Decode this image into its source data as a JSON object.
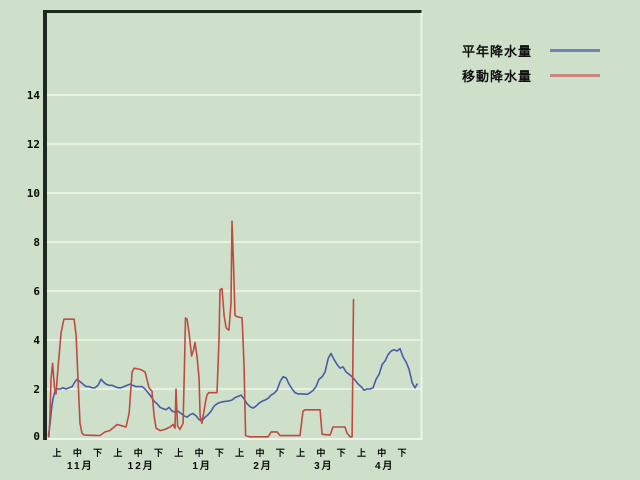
{
  "legend": {
    "items": [
      {
        "label": "平年降水量",
        "swatch_color": "#7282b2"
      },
      {
        "label": "移動降水量",
        "swatch_color": "#c6897b"
      }
    ]
  },
  "colors": {
    "background": "#cee0ca",
    "gridline": "#e7f0e3",
    "frame_dark": "#1e2a1e",
    "frame_light": "#edf5e9",
    "label_text": "#0a0a0a",
    "series_normal": "#4a5ca6",
    "series_moving": "#bf4a40"
  },
  "chart_data": {
    "type": "line",
    "title": "",
    "xlabel": "",
    "ylabel": "",
    "x_axis": {
      "unit": "ten-day periods (旬) from Nov 1, x in days",
      "jun_labels": [
        "上",
        "中",
        "下"
      ],
      "months": [
        "11月",
        "12月",
        "1月",
        "2月",
        "3月",
        "4月"
      ],
      "days_per_month": 30,
      "range_days": [
        0,
        184
      ]
    },
    "y_axis": {
      "ticks": [
        0,
        2,
        4,
        6,
        8,
        10,
        12,
        14
      ],
      "range": [
        0,
        17.4
      ],
      "grid": true
    },
    "legend_position": "top-right-outside",
    "series": [
      {
        "name": "平年降水量",
        "color": "#4a5ca6",
        "points": [
          [
            0.8,
            0.1
          ],
          [
            1.6,
            0.6
          ],
          [
            2.3,
            1.2
          ],
          [
            3,
            1.6
          ],
          [
            4,
            1.9
          ],
          [
            5,
            2.0
          ],
          [
            6.5,
            2.0
          ],
          [
            8,
            2.05
          ],
          [
            9.4,
            2.0
          ],
          [
            10.9,
            2.05
          ],
          [
            12.4,
            2.1
          ],
          [
            13.9,
            2.3
          ],
          [
            14.9,
            2.4
          ],
          [
            16.3,
            2.3
          ],
          [
            17.8,
            2.2
          ],
          [
            19.3,
            2.1
          ],
          [
            20.8,
            2.1
          ],
          [
            22.2,
            2.05
          ],
          [
            23.7,
            2.05
          ],
          [
            25.2,
            2.15
          ],
          [
            26.7,
            2.4
          ],
          [
            27.7,
            2.3
          ],
          [
            29.1,
            2.2
          ],
          [
            30.6,
            2.15
          ],
          [
            32.1,
            2.15
          ],
          [
            33.6,
            2.1
          ],
          [
            35.1,
            2.05
          ],
          [
            36.5,
            2.05
          ],
          [
            38,
            2.1
          ],
          [
            39.5,
            2.15
          ],
          [
            41,
            2.2
          ],
          [
            42.4,
            2.15
          ],
          [
            43.9,
            2.1
          ],
          [
            45.4,
            2.1
          ],
          [
            46.9,
            2.1
          ],
          [
            48.4,
            2.0
          ],
          [
            49.8,
            1.85
          ],
          [
            51.3,
            1.7
          ],
          [
            52.8,
            1.5
          ],
          [
            54.3,
            1.4
          ],
          [
            55.8,
            1.25
          ],
          [
            57.2,
            1.2
          ],
          [
            58.7,
            1.15
          ],
          [
            60.2,
            1.25
          ],
          [
            61.7,
            1.1
          ],
          [
            63.2,
            1.05
          ],
          [
            64.6,
            1.1
          ],
          [
            66.1,
            1.0
          ],
          [
            67.6,
            0.9
          ],
          [
            69.1,
            0.85
          ],
          [
            70.5,
            0.95
          ],
          [
            72,
            1.0
          ],
          [
            73.5,
            0.9
          ],
          [
            75,
            0.75
          ],
          [
            76.4,
            0.7
          ],
          [
            77.9,
            0.85
          ],
          [
            79.4,
            0.95
          ],
          [
            80.9,
            1.1
          ],
          [
            82.4,
            1.3
          ],
          [
            83.8,
            1.4
          ],
          [
            85.3,
            1.45
          ],
          [
            86.8,
            1.48
          ],
          [
            88.3,
            1.5
          ],
          [
            89.8,
            1.52
          ],
          [
            91.2,
            1.55
          ],
          [
            92.7,
            1.65
          ],
          [
            94.2,
            1.7
          ],
          [
            95.7,
            1.75
          ],
          [
            97.1,
            1.6
          ],
          [
            98.6,
            1.4
          ],
          [
            100.1,
            1.28
          ],
          [
            101.6,
            1.22
          ],
          [
            103.1,
            1.3
          ],
          [
            104.5,
            1.42
          ],
          [
            106,
            1.5
          ],
          [
            107.5,
            1.55
          ],
          [
            109,
            1.62
          ],
          [
            110.5,
            1.75
          ],
          [
            111.9,
            1.82
          ],
          [
            113.4,
            1.95
          ],
          [
            114.9,
            2.3
          ],
          [
            116.4,
            2.5
          ],
          [
            117.9,
            2.45
          ],
          [
            119.3,
            2.2
          ],
          [
            120.8,
            2.0
          ],
          [
            122.3,
            1.85
          ],
          [
            123.8,
            1.8
          ],
          [
            125.2,
            1.8
          ],
          [
            126.7,
            1.8
          ],
          [
            128.2,
            1.78
          ],
          [
            129.7,
            1.85
          ],
          [
            131.2,
            1.95
          ],
          [
            132.6,
            2.1
          ],
          [
            134.1,
            2.4
          ],
          [
            135.6,
            2.5
          ],
          [
            137.1,
            2.7
          ],
          [
            138.6,
            3.25
          ],
          [
            140,
            3.45
          ],
          [
            141.5,
            3.2
          ],
          [
            143,
            3.0
          ],
          [
            144.5,
            2.85
          ],
          [
            145.9,
            2.9
          ],
          [
            147.4,
            2.7
          ],
          [
            148.9,
            2.6
          ],
          [
            150.4,
            2.5
          ],
          [
            151.9,
            2.35
          ],
          [
            153.4,
            2.2
          ],
          [
            154.8,
            2.1
          ],
          [
            156.3,
            1.95
          ],
          [
            157.8,
            2.0
          ],
          [
            159.3,
            2.0
          ],
          [
            160.7,
            2.05
          ],
          [
            162.2,
            2.4
          ],
          [
            163.7,
            2.6
          ],
          [
            165.2,
            3.0
          ],
          [
            166.7,
            3.15
          ],
          [
            168.1,
            3.4
          ],
          [
            169.6,
            3.55
          ],
          [
            171.1,
            3.6
          ],
          [
            172.6,
            3.55
          ],
          [
            174,
            3.65
          ],
          [
            175.5,
            3.3
          ],
          [
            177,
            3.1
          ],
          [
            178.5,
            2.8
          ],
          [
            180,
            2.25
          ],
          [
            181.4,
            2.05
          ],
          [
            182.4,
            2.2
          ]
        ]
      },
      {
        "name": "移動降水量",
        "color": "#bf4a40",
        "points": [
          [
            1,
            0.05
          ],
          [
            1.5,
            0.8
          ],
          [
            2,
            2.4
          ],
          [
            2.8,
            3.05
          ],
          [
            3.8,
            2.0
          ],
          [
            4.5,
            1.8
          ],
          [
            5.5,
            2.9
          ],
          [
            7,
            4.3
          ],
          [
            8.4,
            4.85
          ],
          [
            13.4,
            4.85
          ],
          [
            14.4,
            4.2
          ],
          [
            15.3,
            2.5
          ],
          [
            16.3,
            0.6
          ],
          [
            17.3,
            0.2
          ],
          [
            18.3,
            0.12
          ],
          [
            26,
            0.1
          ],
          [
            28.7,
            0.25
          ],
          [
            31,
            0.3
          ],
          [
            34.6,
            0.55
          ],
          [
            37,
            0.5
          ],
          [
            39,
            0.45
          ],
          [
            40.5,
            1.0
          ],
          [
            42,
            2.7
          ],
          [
            43,
            2.85
          ],
          [
            46,
            2.8
          ],
          [
            48.4,
            2.7
          ],
          [
            50.3,
            2.05
          ],
          [
            51.8,
            1.9
          ],
          [
            52.8,
            0.9
          ],
          [
            53.8,
            0.4
          ],
          [
            55.8,
            0.3
          ],
          [
            58.2,
            0.35
          ],
          [
            60.7,
            0.45
          ],
          [
            62.2,
            0.55
          ],
          [
            63.1,
            0.4
          ],
          [
            63.6,
            2.0
          ],
          [
            64.4,
            0.5
          ],
          [
            65.6,
            0.35
          ],
          [
            67.1,
            0.6
          ],
          [
            67.8,
            3.0
          ],
          [
            68.3,
            4.9
          ],
          [
            69.1,
            4.85
          ],
          [
            70,
            4.3
          ],
          [
            71.3,
            3.35
          ],
          [
            72.3,
            3.6
          ],
          [
            73,
            3.9
          ],
          [
            74,
            3.3
          ],
          [
            75,
            2.4
          ],
          [
            75.5,
            0.9
          ],
          [
            76.4,
            0.6
          ],
          [
            77.2,
            1.0
          ],
          [
            78.2,
            1.5
          ],
          [
            78.9,
            1.75
          ],
          [
            79.7,
            1.85
          ],
          [
            83.8,
            1.85
          ],
          [
            84.8,
            4.0
          ],
          [
            85.3,
            6.05
          ],
          [
            86.3,
            6.1
          ],
          [
            87.3,
            5.0
          ],
          [
            88.3,
            4.5
          ],
          [
            89.7,
            4.4
          ],
          [
            90.7,
            5.5
          ],
          [
            91.2,
            8.85
          ],
          [
            92,
            7.0
          ],
          [
            92.7,
            5.0
          ],
          [
            93.7,
            4.95
          ],
          [
            96.2,
            4.9
          ],
          [
            97.1,
            3.0
          ],
          [
            97.9,
            0.1
          ],
          [
            100,
            0.05
          ],
          [
            109,
            0.05
          ],
          [
            110.5,
            0.25
          ],
          [
            113.4,
            0.25
          ],
          [
            114.9,
            0.1
          ],
          [
            124.7,
            0.1
          ],
          [
            126.2,
            1.1
          ],
          [
            127.2,
            1.15
          ],
          [
            134.6,
            1.15
          ],
          [
            135.6,
            0.15
          ],
          [
            139.5,
            0.12
          ],
          [
            141,
            0.45
          ],
          [
            146.9,
            0.45
          ],
          [
            147.9,
            0.2
          ],
          [
            149.4,
            0.05
          ],
          [
            150.4,
            0.05
          ],
          [
            151.1,
            5.65
          ]
        ]
      }
    ]
  }
}
